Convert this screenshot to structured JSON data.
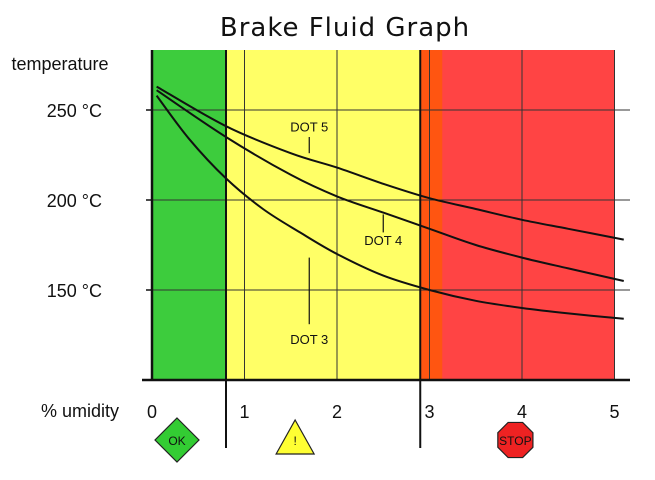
{
  "chart_data": {
    "type": "line",
    "title": "Brake Fluid Graph",
    "xlabel": "% umidity",
    "ylabel": "temperature",
    "xlim": [
      0,
      5.2
    ],
    "ylim": [
      100,
      285
    ],
    "x_ticks": [
      {
        "value": 0,
        "label": "0"
      },
      {
        "value": 1,
        "label": "1"
      },
      {
        "value": 2,
        "label": "2"
      },
      {
        "value": 3,
        "label": "3"
      },
      {
        "value": 4,
        "label": "4"
      },
      {
        "value": 5,
        "label": "5"
      }
    ],
    "y_ticks": [
      {
        "value": 250,
        "label": "250 °C"
      },
      {
        "value": 200,
        "label": "200 °C"
      },
      {
        "value": 150,
        "label": "150 °C"
      }
    ],
    "grid": true,
    "zones": [
      {
        "from": 0,
        "to": 0.8,
        "color": "#3dcc3d",
        "sign": "diamond",
        "sign_label": "OK",
        "sign_color": "#33cc33"
      },
      {
        "from": 0.8,
        "to": 2.9,
        "color": "#ffff66",
        "sign": "triangle",
        "sign_label": "!",
        "sign_color": "#ffff33"
      },
      {
        "from": 2.9,
        "to": 5.0,
        "color": "#ff4444",
        "sign": "octagon",
        "sign_label": "STOP",
        "sign_color": "#ee2222"
      }
    ],
    "zone_transition_color": "#ff5511",
    "series": [
      {
        "name": "DOT 5",
        "x": [
          0.05,
          0.8,
          1.5,
          2.0,
          2.5,
          3.0,
          3.5,
          4.0,
          4.5,
          5.1
        ],
        "y": [
          263,
          241,
          226,
          218,
          209,
          201,
          195,
          189,
          184,
          178
        ],
        "label_x": 1.7,
        "label_y": 238,
        "leader": [
          [
            1.7,
            226
          ],
          [
            1.7,
            235
          ]
        ]
      },
      {
        "name": "DOT 4",
        "x": [
          0.05,
          0.8,
          1.5,
          2.0,
          2.5,
          3.0,
          3.5,
          4.0,
          4.5,
          5.1
        ],
        "y": [
          261,
          235,
          214,
          202,
          193,
          184,
          175,
          168,
          162,
          155
        ],
        "label_x": 2.5,
        "label_y": 175,
        "leader": [
          [
            2.5,
            192
          ],
          [
            2.5,
            182
          ]
        ]
      },
      {
        "name": "DOT 3",
        "x": [
          0.05,
          0.4,
          0.8,
          1.2,
          1.6,
          2.0,
          2.5,
          3.0,
          3.5,
          4.0,
          4.5,
          5.1
        ],
        "y": [
          258,
          234,
          212,
          195,
          182,
          170,
          158,
          150,
          144,
          140,
          137,
          134
        ],
        "label_x": 1.7,
        "label_y": 120,
        "leader": [
          [
            1.7,
            168
          ],
          [
            1.7,
            131
          ]
        ]
      }
    ]
  }
}
